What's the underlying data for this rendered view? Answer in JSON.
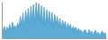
{
  "chart_data": {
    "type": "area",
    "series": [
      {
        "type": "area",
        "color": "#5badd6",
        "values": [
          25,
          18,
          30,
          15,
          28,
          20,
          35,
          18,
          40,
          25,
          32,
          22,
          38,
          28,
          55,
          30,
          65,
          20,
          70,
          40,
          75,
          35,
          80,
          45,
          85,
          38,
          90,
          50,
          88,
          42,
          82,
          35,
          78,
          30,
          72,
          38,
          68,
          32,
          65,
          28,
          60,
          35,
          55,
          28,
          50,
          22,
          45,
          30,
          42,
          20,
          38,
          25,
          35,
          18,
          30,
          22,
          28,
          15,
          25,
          18,
          20,
          12,
          18,
          22,
          15,
          10,
          22,
          12,
          18,
          8,
          15,
          20,
          10,
          15,
          8,
          12,
          18,
          10,
          14,
          8
        ]
      },
      {
        "type": "line",
        "color": "#4a9cc7",
        "values": [
          25,
          18,
          30,
          15,
          28,
          20,
          35,
          18,
          40,
          25,
          32,
          22,
          38,
          28,
          55,
          30,
          65,
          20,
          70,
          40,
          75,
          35,
          80,
          45,
          85,
          38,
          90,
          50,
          88,
          42,
          82,
          35,
          78,
          30,
          72,
          38,
          68,
          32,
          65,
          28,
          60,
          35,
          55,
          28,
          50,
          22,
          45,
          30,
          42,
          20,
          38,
          25,
          35,
          18,
          30,
          22,
          28,
          15,
          25,
          18,
          20,
          12,
          18,
          22,
          15,
          10,
          22,
          12,
          18,
          8,
          15,
          20,
          10,
          15,
          8,
          12,
          18,
          10,
          14,
          8
        ]
      }
    ],
    "xlim": [
      0,
      79
    ],
    "ylim": [
      0,
      91.8
    ],
    "tick_labels": false
  }
}
